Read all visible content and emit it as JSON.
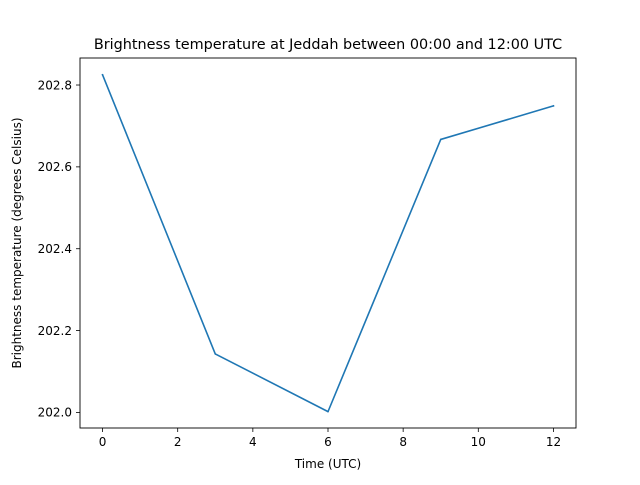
{
  "chart_data": {
    "type": "line",
    "title": "Brightness temperature at Jeddah between 00:00 and 12:00 UTC",
    "xlabel": "Time (UTC)",
    "ylabel": "Brightness temperature (degrees Celsius)",
    "xlim": [
      -0.6,
      12.6
    ],
    "ylim": [
      201.962,
      202.866
    ],
    "x_ticks": [
      0,
      2,
      4,
      6,
      8,
      10,
      12
    ],
    "y_ticks": [
      202.0,
      202.2,
      202.4,
      202.6,
      202.8
    ],
    "grid": false,
    "legend": "none",
    "series": [
      {
        "color": "#1f77b4",
        "x": [
          0,
          3,
          6,
          9,
          12
        ],
        "y": [
          202.825,
          202.143,
          202.002,
          202.667,
          202.749
        ]
      }
    ]
  }
}
